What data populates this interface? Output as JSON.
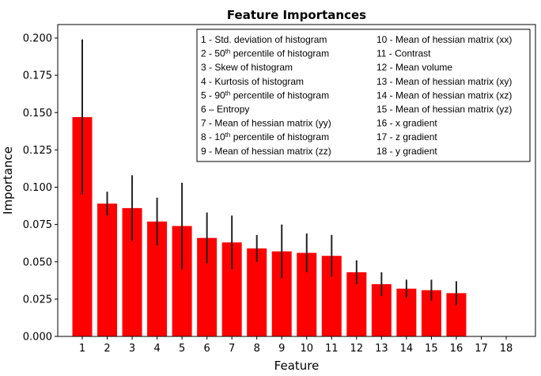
{
  "chart_data": {
    "type": "bar",
    "title": "Feature Importances",
    "xlabel": "Feature",
    "ylabel": "Importance",
    "categories": [
      "1",
      "2",
      "3",
      "4",
      "5",
      "6",
      "7",
      "8",
      "9",
      "10",
      "11",
      "12",
      "13",
      "14",
      "15",
      "16",
      "17",
      "18"
    ],
    "values": [
      0.147,
      0.089,
      0.086,
      0.077,
      0.074,
      0.066,
      0.063,
      0.059,
      0.057,
      0.056,
      0.054,
      0.043,
      0.035,
      0.032,
      0.031,
      0.029,
      0,
      0
    ],
    "errors": [
      0.052,
      0.008,
      0.022,
      0.016,
      0.029,
      0.017,
      0.018,
      0.009,
      0.018,
      0.013,
      0.014,
      0.008,
      0.008,
      0.006,
      0.007,
      0.008,
      0,
      0
    ],
    "ylim": [
      0,
      0.2
    ],
    "yticks": [
      "0.000",
      "0.025",
      "0.050",
      "0.075",
      "0.100",
      "0.125",
      "0.150",
      "0.175",
      "0.200"
    ],
    "bar_color": "#ff0000",
    "error_color": "#222222",
    "grid": false,
    "legend_placement": "top-right",
    "legend": {
      "left_column": [
        {
          "parts": [
            [
              "1 - Std. deviation of histogram",
              false
            ]
          ]
        },
        {
          "parts": [
            [
              "2 - 50",
              false
            ],
            [
              "th",
              true
            ],
            [
              " percentile of histogram",
              false
            ]
          ]
        },
        {
          "parts": [
            [
              "3 - Skew of histogram",
              false
            ]
          ]
        },
        {
          "parts": [
            [
              "4 - Kurtosis of histogram",
              false
            ]
          ]
        },
        {
          "parts": [
            [
              "5 - 90",
              false
            ],
            [
              "th",
              true
            ],
            [
              " percentile of histogram",
              false
            ]
          ]
        },
        {
          "parts": [
            [
              "6 – Entropy",
              false
            ]
          ]
        },
        {
          "parts": [
            [
              "7 - Mean of hessian matrix (yy)",
              false
            ]
          ]
        },
        {
          "parts": [
            [
              "8 - 10",
              false
            ],
            [
              "th",
              true
            ],
            [
              " percentile of histogram",
              false
            ]
          ]
        },
        {
          "parts": [
            [
              "9 - Mean of hessian matrix (zz)",
              false
            ]
          ]
        }
      ],
      "right_column": [
        {
          "parts": [
            [
              "10 - Mean of hessian matrix (xx)",
              false
            ]
          ]
        },
        {
          "parts": [
            [
              "11 - Contrast",
              false
            ]
          ]
        },
        {
          "parts": [
            [
              "12 - Mean volume",
              false
            ]
          ]
        },
        {
          "parts": [
            [
              "13 - Mean of hessian matrix (xy)",
              false
            ]
          ]
        },
        {
          "parts": [
            [
              "14 - Mean of hessian matrix (xz)",
              false
            ]
          ]
        },
        {
          "parts": [
            [
              "15 - Mean of hessian matrix (yz)",
              false
            ]
          ]
        },
        {
          "parts": [
            [
              "16 - x gradient",
              false
            ]
          ]
        },
        {
          "parts": [
            [
              "17 - z gradient",
              false
            ]
          ]
        },
        {
          "parts": [
            [
              "18 - y gradient",
              false
            ]
          ]
        }
      ]
    }
  }
}
